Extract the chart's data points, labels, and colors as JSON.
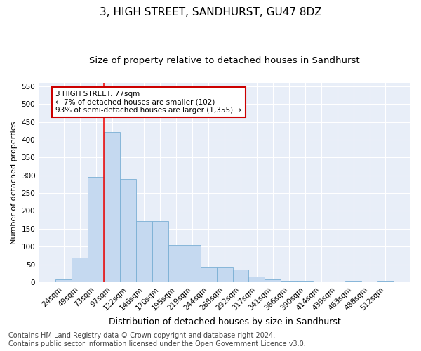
{
  "title": "3, HIGH STREET, SANDHURST, GU47 8DZ",
  "subtitle": "Size of property relative to detached houses in Sandhurst",
  "xlabel": "Distribution of detached houses by size in Sandhurst",
  "ylabel": "Number of detached properties",
  "bin_labels": [
    "24sqm",
    "49sqm",
    "73sqm",
    "97sqm",
    "122sqm",
    "146sqm",
    "170sqm",
    "195sqm",
    "219sqm",
    "244sqm",
    "268sqm",
    "292sqm",
    "317sqm",
    "341sqm",
    "366sqm",
    "390sqm",
    "414sqm",
    "439sqm",
    "463sqm",
    "488sqm",
    "512sqm"
  ],
  "bar_heights": [
    7,
    68,
    295,
    422,
    290,
    172,
    172,
    104,
    104,
    42,
    42,
    36,
    15,
    8,
    4,
    4,
    1,
    0,
    4,
    1,
    3
  ],
  "bar_color": "#c5d9f0",
  "bar_edge_color": "#7aafd4",
  "vline_x_index": 2,
  "vline_color": "#ee1111",
  "annotation_text": "3 HIGH STREET: 77sqm\n← 7% of detached houses are smaller (102)\n93% of semi-detached houses are larger (1,355) →",
  "annotation_box_color": "white",
  "annotation_box_edge": "#cc0000",
  "ylim": [
    0,
    560
  ],
  "yticks": [
    0,
    50,
    100,
    150,
    200,
    250,
    300,
    350,
    400,
    450,
    500,
    550
  ],
  "footer_line1": "Contains HM Land Registry data © Crown copyright and database right 2024.",
  "footer_line2": "Contains public sector information licensed under the Open Government Licence v3.0.",
  "background_color": "#e8eef8",
  "grid_color": "#ffffff",
  "title_fontsize": 11,
  "subtitle_fontsize": 9.5,
  "xlabel_fontsize": 9,
  "ylabel_fontsize": 8,
  "tick_fontsize": 7.5,
  "annot_fontsize": 7.5,
  "footer_fontsize": 7
}
